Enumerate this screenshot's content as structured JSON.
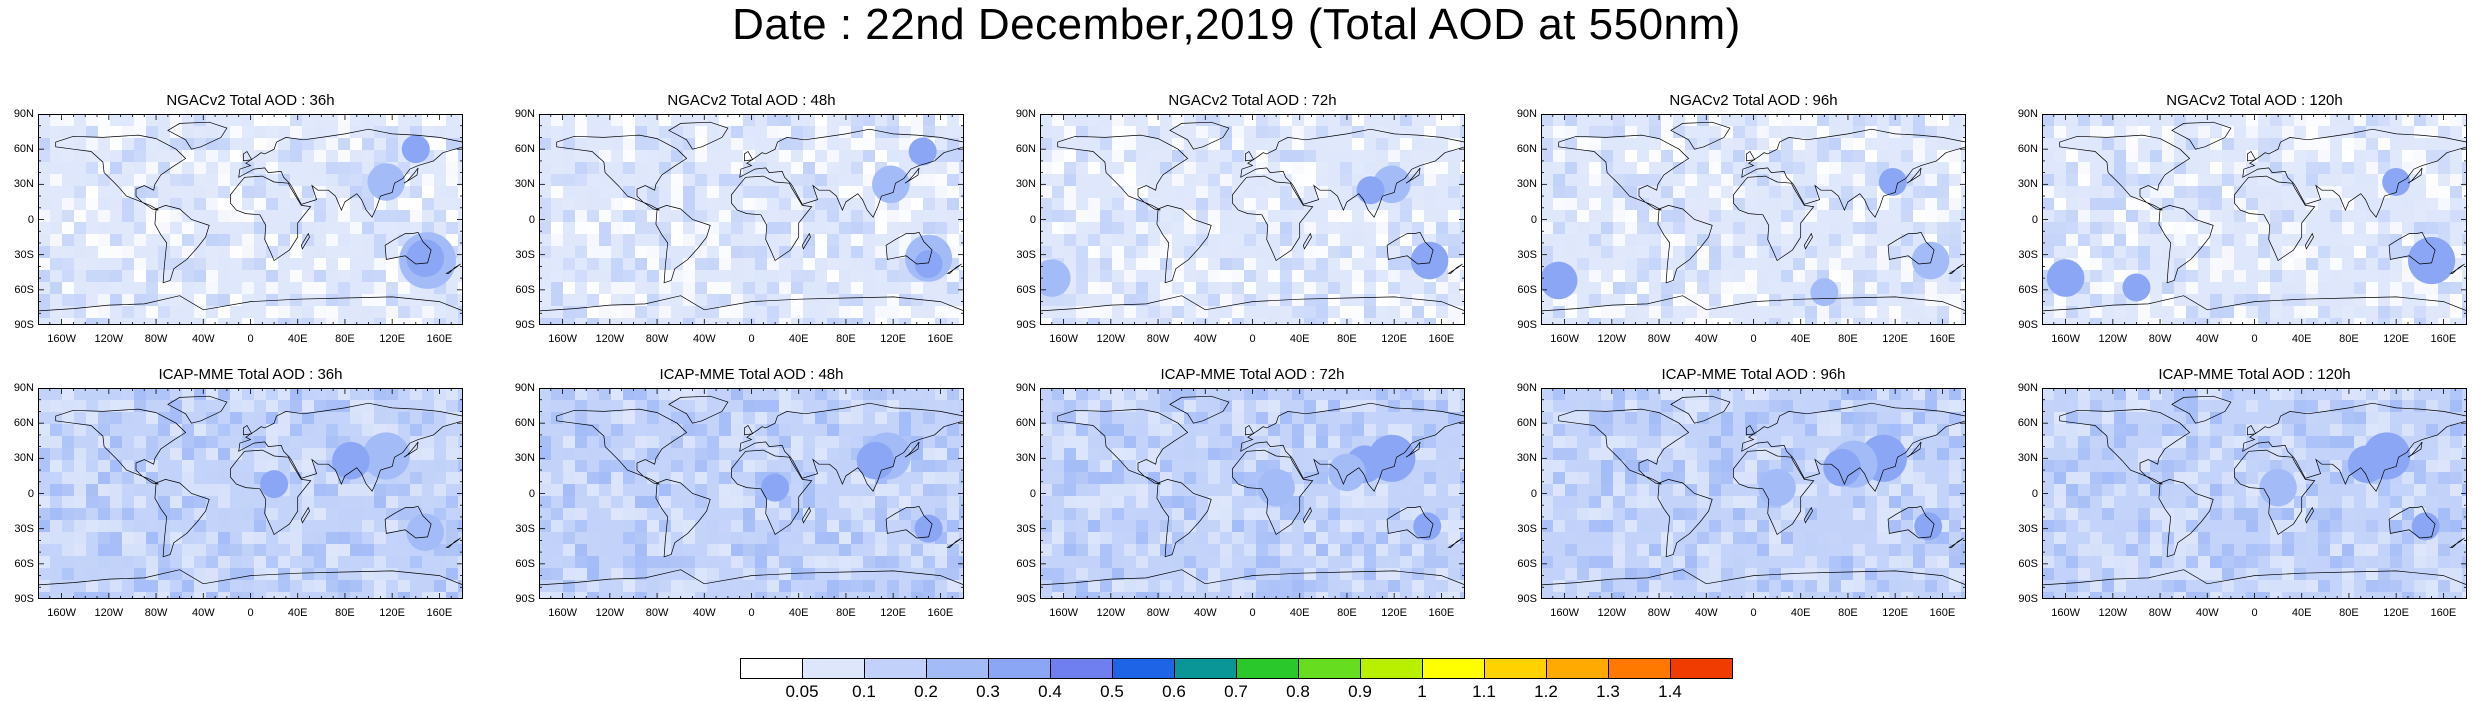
{
  "title": "Date : 22nd December,2019 (Total AOD at 550nm)",
  "rows": [
    {
      "model": "NGACv2",
      "panels": [
        {
          "title": "NGACv2 Total AOD : 36h"
        },
        {
          "title": "NGACv2 Total AOD : 48h"
        },
        {
          "title": "NGACv2 Total AOD : 72h"
        },
        {
          "title": "NGACv2 Total AOD : 96h"
        },
        {
          "title": "NGACv2 Total AOD : 120h"
        }
      ]
    },
    {
      "model": "ICAP-MME",
      "panels": [
        {
          "title": "ICAP-MME Total AOD : 36h"
        },
        {
          "title": "ICAP-MME Total AOD : 48h"
        },
        {
          "title": "ICAP-MME Total AOD : 72h"
        },
        {
          "title": "ICAP-MME Total AOD : 96h"
        },
        {
          "title": "ICAP-MME Total AOD : 120h"
        }
      ]
    }
  ],
  "lat_labels": [
    "90N",
    "60N",
    "30N",
    "0",
    "30S",
    "60S",
    "90S"
  ],
  "lon_labels": [
    "160W",
    "120W",
    "80W",
    "40W",
    "0",
    "40E",
    "80E",
    "120E",
    "160E"
  ],
  "colorbar": {
    "levels": [
      "0.05",
      "0.1",
      "0.2",
      "0.3",
      "0.4",
      "0.5",
      "0.6",
      "0.7",
      "0.8",
      "0.9",
      "1",
      "1.1",
      "1.2",
      "1.3",
      "1.4"
    ],
    "colors": [
      "#ffffff",
      "#dde6fb",
      "#c1d1f9",
      "#a3bbf7",
      "#8ba6f5",
      "#6f7ff0",
      "#1e64e6",
      "#0a9696",
      "#2ac82a",
      "#66dd1e",
      "#b8f000",
      "#ffff00",
      "#ffd200",
      "#ffaa00",
      "#ff7800",
      "#f03c00"
    ]
  }
}
